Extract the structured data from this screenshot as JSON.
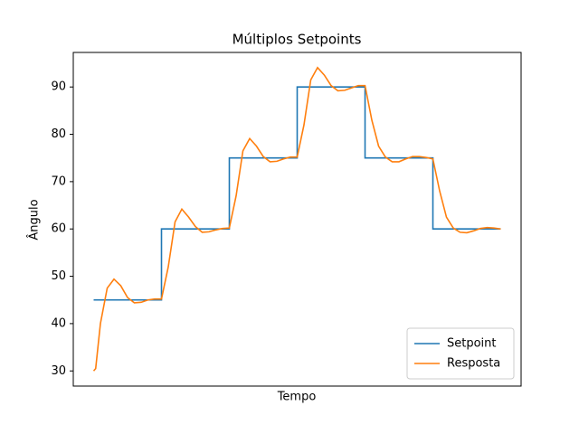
{
  "chart_data": {
    "type": "line",
    "title": "Múltiplos Setpoints",
    "xlabel": "Tempo",
    "ylabel": "Ângulo",
    "xlim": [
      -30,
      630
    ],
    "ylim": [
      26.8,
      97.3
    ],
    "yticks": [
      30,
      40,
      50,
      60,
      70,
      80,
      90
    ],
    "grid": false,
    "legend": "lower right",
    "series": [
      {
        "name": "Setpoint",
        "color": "#1f77b4",
        "x": [
          0,
          100,
          100,
          200,
          200,
          300,
          300,
          400,
          400,
          500,
          500,
          600
        ],
        "values": [
          45,
          45,
          60,
          60,
          75,
          75,
          90,
          90,
          75,
          75,
          60,
          60
        ]
      },
      {
        "name": "Resposta",
        "color": "#ff7f0e",
        "x": [
          0,
          3,
          10,
          20,
          30,
          40,
          50,
          60,
          70,
          80,
          90,
          100,
          110,
          120,
          130,
          140,
          150,
          160,
          170,
          180,
          190,
          200,
          210,
          220,
          230,
          240,
          250,
          260,
          270,
          280,
          290,
          300,
          310,
          320,
          330,
          340,
          350,
          360,
          370,
          380,
          390,
          400,
          410,
          420,
          430,
          440,
          450,
          460,
          470,
          480,
          490,
          500,
          510,
          520,
          530,
          540,
          550,
          560,
          570,
          580,
          590,
          600
        ],
        "values": [
          30,
          30.5,
          40,
          47.5,
          49.4,
          48,
          45.5,
          44.4,
          44.5,
          45,
          45.2,
          45.2,
          52,
          61.5,
          64.2,
          62.5,
          60.5,
          59.3,
          59.4,
          59.8,
          60.1,
          60.2,
          67,
          76.5,
          79.1,
          77.5,
          75.3,
          74.2,
          74.3,
          74.8,
          75.2,
          75.2,
          82,
          91.5,
          94.1,
          92.5,
          90.3,
          89.2,
          89.3,
          89.8,
          90.3,
          90.3,
          83,
          77.5,
          75.2,
          74.2,
          74.2,
          74.8,
          75.3,
          75.3,
          75.1,
          74.8,
          68,
          62.5,
          60.2,
          59.3,
          59.2,
          59.6,
          60.1,
          60.3,
          60.2,
          60
        ]
      }
    ]
  }
}
